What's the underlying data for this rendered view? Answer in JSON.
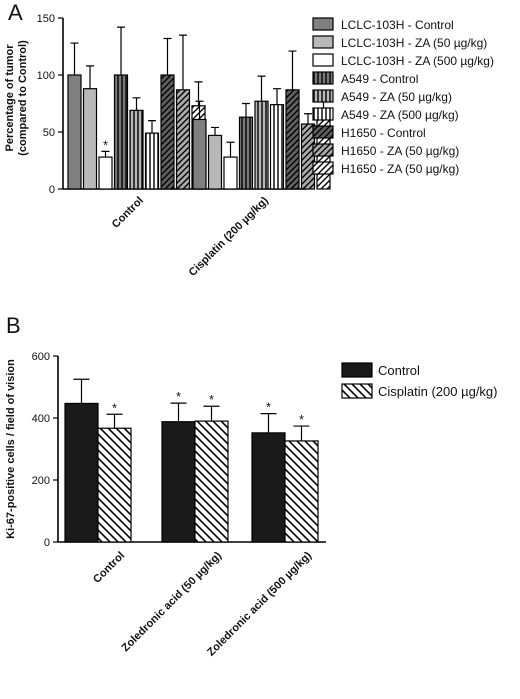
{
  "colors": {
    "dark": "#1a1a1a",
    "mid": "#707070",
    "light": "#b0b0b0",
    "white": "#ffffff"
  },
  "chart_data": [
    {
      "type": "bar",
      "panel_label": "A",
      "ylabel": "Percentage of tumor",
      "ylabel2": "(compared to Control)",
      "ylim": [
        0,
        150
      ],
      "yticks": [
        0,
        50,
        100,
        150
      ],
      "categories": [
        "Control",
        "Cisplatin (200 µg/kg)"
      ],
      "legend_position": "right",
      "series": [
        {
          "name": "LCLC-103H - Control",
          "values": [
            100,
            61
          ],
          "errors": [
            28,
            16
          ],
          "fill": "#808080",
          "pattern": "solid"
        },
        {
          "name": "LCLC-103H - ZA (50 µg/kg)",
          "values": [
            88,
            47
          ],
          "errors": [
            20,
            7
          ],
          "fill": "#b8b8b8",
          "pattern": "solid"
        },
        {
          "name": "LCLC-103H - ZA (500 µg/kg)",
          "values": [
            28,
            28
          ],
          "errors": [
            5,
            13
          ],
          "fill": "#ffffff",
          "pattern": "solid",
          "stars": [
            true,
            false
          ]
        },
        {
          "name": "A549 - Control",
          "values": [
            100,
            63
          ],
          "errors": [
            42,
            12
          ],
          "fill": "#7a7a7a",
          "pattern": "vertical"
        },
        {
          "name": "A549 - ZA (50 µg/kg)",
          "values": [
            69,
            77
          ],
          "errors": [
            11,
            22
          ],
          "fill": "#b8b8b8",
          "pattern": "vertical"
        },
        {
          "name": "A549 - ZA (500 µg/kg)",
          "values": [
            49,
            74
          ],
          "errors": [
            11,
            14
          ],
          "fill": "#ffffff",
          "pattern": "vertical"
        },
        {
          "name": "H1650 - Control",
          "values": [
            100,
            87
          ],
          "errors": [
            32,
            34
          ],
          "fill": "#606060",
          "pattern": "diagonal"
        },
        {
          "name": "H1650 - ZA (50 µg/kg)",
          "values": [
            87,
            57
          ],
          "errors": [
            48,
            9
          ],
          "fill": "#aaaaaa",
          "pattern": "diagonal"
        },
        {
          "name": "H1650 - ZA (50 µg/kg)",
          "values": [
            73,
            66
          ],
          "errors": [
            21,
            14
          ],
          "fill": "#ffffff",
          "pattern": "diagonal"
        }
      ]
    },
    {
      "type": "bar",
      "panel_label": "B",
      "ylabel": "Ki-67-positive cells / field of vision",
      "ylim": [
        0,
        600
      ],
      "yticks": [
        0,
        200,
        400,
        600
      ],
      "categories": [
        "Control",
        "Zoledronic acid (50 µg/kg)",
        "Zoledronic acid (500 µg/kg)"
      ],
      "legend_position": "right",
      "series": [
        {
          "name": "Control",
          "values": [
            447,
            388,
            352
          ],
          "errors": [
            78,
            60,
            62
          ],
          "fill": "#1a1a1a",
          "pattern": "solid",
          "stars": [
            false,
            true,
            true
          ]
        },
        {
          "name": "Cisplatin (200 µg/kg)",
          "values": [
            367,
            390,
            326
          ],
          "errors": [
            45,
            48,
            48
          ],
          "fill": "#ffffff",
          "pattern": "diagonal",
          "stars": [
            true,
            true,
            true
          ]
        }
      ]
    }
  ]
}
